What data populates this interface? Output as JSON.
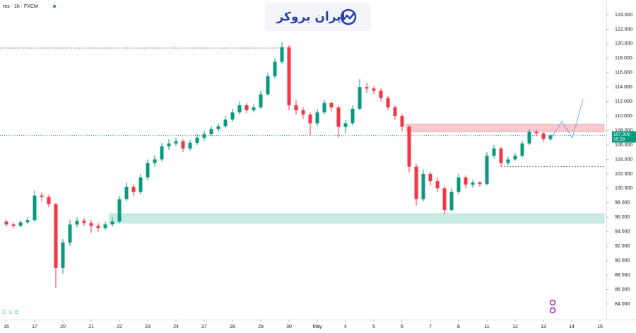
{
  "chart_data": {
    "type": "candlestick",
    "title": "res · 1h · FXCM",
    "watermark": "ایران بروکر",
    "brand_mark": "C L E",
    "up_color": "#089981",
    "down_color": "#f23645",
    "xlim": [
      -0.225,
      21.225
    ],
    "ylim": [
      82.04,
      126.05
    ],
    "xticks": [
      {
        "value": 0,
        "label": "16"
      },
      {
        "value": 1,
        "label": "17"
      },
      {
        "value": 2,
        "label": "20"
      },
      {
        "value": 3,
        "label": "21"
      },
      {
        "value": 4,
        "label": "22"
      },
      {
        "value": 5,
        "label": "23"
      },
      {
        "value": 6,
        "label": "24"
      },
      {
        "value": 7,
        "label": "27"
      },
      {
        "value": 8,
        "label": "28"
      },
      {
        "value": 9,
        "label": "29"
      },
      {
        "value": 10,
        "label": "30"
      },
      {
        "value": 11,
        "label": "May"
      },
      {
        "value": 12,
        "label": "4"
      },
      {
        "value": 13,
        "label": "5"
      },
      {
        "value": 14,
        "label": "6"
      },
      {
        "value": 15,
        "label": "7"
      },
      {
        "value": 16,
        "label": "8"
      },
      {
        "value": 17,
        "label": "11"
      },
      {
        "value": 18,
        "label": "12"
      },
      {
        "value": 19,
        "label": "13"
      },
      {
        "value": 20,
        "label": "14"
      },
      {
        "value": 21,
        "label": "15"
      }
    ],
    "yticks": [
      {
        "value": 84,
        "label": "84.000"
      },
      {
        "value": 86,
        "label": "86.000"
      },
      {
        "value": 88,
        "label": "88.000"
      },
      {
        "value": 90,
        "label": "90.000"
      },
      {
        "value": 92,
        "label": "92.000"
      },
      {
        "value": 94,
        "label": "94.000"
      },
      {
        "value": 96,
        "label": "96.000"
      },
      {
        "value": 98,
        "label": "98.000"
      },
      {
        "value": 100,
        "label": "100.000"
      },
      {
        "value": 102,
        "label": "102.000"
      },
      {
        "value": 104,
        "label": "104.000"
      },
      {
        "value": 106,
        "label": "106.000"
      },
      {
        "value": 108,
        "label": "108.000"
      },
      {
        "value": 110,
        "label": "110.000"
      },
      {
        "value": 112,
        "label": "112.000"
      },
      {
        "value": 114,
        "label": "114.000"
      },
      {
        "value": 116,
        "label": "116.000"
      },
      {
        "value": 118,
        "label": "118.000"
      },
      {
        "value": 120,
        "label": "120.000"
      },
      {
        "value": 122,
        "label": "122.000"
      },
      {
        "value": 124,
        "label": "124.000"
      }
    ],
    "x": [
      0,
      0.25,
      0.5,
      0.75,
      1,
      1.25,
      1.5,
      1.75,
      2,
      2.25,
      2.5,
      2.75,
      3,
      3.25,
      3.5,
      3.75,
      4,
      4.25,
      4.5,
      4.75,
      5,
      5.25,
      5.5,
      5.75,
      6,
      6.25,
      6.5,
      6.75,
      7,
      7.25,
      7.5,
      7.75,
      8,
      8.25,
      8.5,
      8.75,
      9,
      9.25,
      9.5,
      9.75,
      10,
      10.25,
      10.5,
      10.75,
      11,
      11.25,
      11.5,
      11.75,
      12,
      12.25,
      12.5,
      12.75,
      13,
      13.25,
      13.5,
      13.75,
      14,
      14.25,
      14.5,
      14.75,
      15,
      15.25,
      15.5,
      15.75,
      16,
      16.25,
      16.5,
      16.75,
      17,
      17.25,
      17.5,
      17.75,
      18,
      18.25,
      18.5,
      18.75,
      19,
      19.25
    ],
    "open": [
      95.4,
      95.0,
      94.8,
      95.3,
      95.6,
      99.0,
      98.8,
      97.8,
      89.0,
      92.5,
      95.0,
      95.5,
      95.2,
      94.8,
      94.5,
      95.0,
      95.4,
      98.5,
      100.2,
      99.5,
      101.5,
      103.5,
      104.0,
      105.8,
      106.2,
      106.5,
      105.5,
      106.3,
      107.0,
      107.5,
      108.2,
      108.6,
      109.5,
      110.5,
      111.5,
      110.8,
      111.2,
      113.0,
      115.5,
      117.5,
      119.5,
      111.5,
      110.8,
      110.2,
      109.0,
      110.5,
      111.8,
      111.2,
      108.5,
      109.0,
      111.0,
      114.0,
      113.8,
      113.5,
      112.5,
      111.2,
      110.0,
      108.5,
      103.0,
      98.5,
      102.0,
      101.0,
      100.0,
      97.0,
      99.5,
      101.5,
      100.5,
      100.8,
      100.6,
      104.5,
      105.5,
      103.5,
      104.0,
      104.5,
      106.2,
      107.8,
      107.6,
      106.8
    ],
    "high": [
      95.7,
      95.3,
      95.6,
      96.0,
      99.7,
      99.4,
      99.1,
      98.0,
      93.0,
      95.6,
      96.0,
      95.9,
      95.6,
      95.2,
      95.4,
      96.0,
      99.0,
      100.8,
      100.6,
      102.0,
      104.0,
      104.6,
      106.3,
      106.8,
      107.0,
      106.8,
      106.7,
      107.5,
      108.0,
      108.6,
      109.0,
      110.0,
      111.0,
      112.0,
      111.8,
      111.6,
      113.5,
      116.0,
      118.0,
      120.2,
      119.8,
      112.2,
      111.2,
      110.5,
      111.0,
      112.3,
      112.0,
      111.4,
      109.5,
      111.5,
      115.1,
      114.6,
      114.2,
      113.8,
      112.8,
      111.5,
      110.3,
      108.7,
      103.4,
      102.6,
      102.3,
      101.5,
      100.3,
      100.0,
      102.0,
      101.8,
      101.2,
      101.0,
      105.0,
      106.0,
      105.7,
      104.4,
      104.9,
      106.6,
      108.2,
      108.1,
      107.8,
      107.5
    ],
    "low": [
      94.7,
      94.5,
      94.6,
      95.0,
      95.4,
      98.2,
      97.4,
      86.2,
      88.2,
      92.0,
      94.6,
      94.8,
      93.8,
      94.0,
      94.2,
      94.7,
      95.2,
      98.2,
      98.9,
      99.2,
      101.1,
      103.0,
      103.7,
      105.3,
      105.8,
      105.0,
      105.2,
      106.0,
      106.6,
      107.2,
      107.8,
      108.3,
      109.2,
      110.2,
      110.4,
      110.5,
      111.0,
      112.8,
      115.2,
      117.2,
      110.8,
      110.2,
      109.6,
      107.3,
      108.6,
      110.2,
      110.7,
      107.0,
      107.6,
      108.7,
      110.8,
      113.2,
      113.0,
      112.0,
      110.8,
      109.5,
      107.9,
      102.2,
      97.6,
      98.2,
      100.4,
      99.5,
      96.4,
      96.8,
      99.2,
      100.0,
      100.1,
      100.2,
      100.4,
      104.1,
      103.0,
      103.2,
      103.8,
      104.3,
      106.0,
      107.2,
      106.4,
      106.6
    ],
    "close": [
      95.0,
      94.8,
      95.3,
      95.6,
      99.0,
      98.8,
      97.8,
      89.0,
      92.5,
      95.0,
      95.5,
      95.2,
      94.8,
      94.5,
      95.0,
      95.4,
      98.5,
      100.2,
      99.5,
      101.5,
      103.5,
      104.0,
      105.8,
      106.2,
      106.5,
      105.5,
      106.3,
      107.0,
      107.5,
      108.2,
      108.6,
      109.5,
      110.5,
      111.5,
      110.8,
      111.2,
      113.0,
      115.5,
      117.5,
      119.5,
      111.5,
      110.8,
      110.2,
      109.0,
      110.5,
      111.8,
      111.2,
      108.5,
      109.0,
      111.0,
      114.0,
      113.8,
      113.5,
      112.5,
      111.2,
      110.0,
      108.5,
      103.0,
      98.5,
      102.0,
      101.0,
      100.0,
      97.0,
      99.5,
      101.5,
      100.5,
      100.8,
      100.6,
      104.5,
      105.5,
      103.5,
      104.0,
      104.5,
      106.2,
      107.8,
      107.6,
      106.8,
      107.309
    ],
    "zones": [
      {
        "color": "#f8c9cd",
        "x": [
          14.15,
          21.15
        ],
        "y": [
          107.8,
          108.9
        ]
      },
      {
        "color": "#c9ebe4",
        "x": [
          3.65,
          21.15
        ],
        "y": [
          95.2,
          96.5
        ]
      }
    ],
    "levels": [
      {
        "value": 119.4,
        "x": [
          -0.225,
          9.9
        ]
      },
      {
        "value": 103.0,
        "x": [
          17.5,
          21.15
        ]
      }
    ],
    "projection": {
      "x": [
        19.275,
        19.65,
        20.025,
        20.4
      ],
      "y": [
        106.98,
        109.23,
        106.98,
        112.36
      ]
    },
    "last_price": 107.309,
    "countdown": "05:59"
  }
}
